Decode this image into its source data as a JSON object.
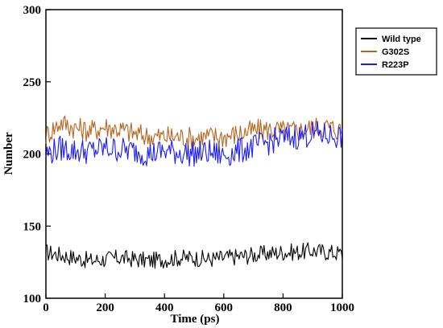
{
  "chart_data": {
    "type": "line",
    "xlabel": "Time (ps)",
    "ylabel": "Number",
    "xlim": [
      0,
      1000
    ],
    "ylim": [
      100,
      300
    ],
    "xticks": [
      "0",
      "200",
      "400",
      "600",
      "800",
      "1000"
    ],
    "yticks": [
      "100",
      "150",
      "200",
      "250",
      "300"
    ],
    "legend_position": "outside-right-top",
    "grid": false,
    "series": [
      {
        "name": "Wild type",
        "color": "#000000",
        "x": [
          0,
          50,
          100,
          150,
          200,
          250,
          300,
          350,
          400,
          450,
          500,
          550,
          600,
          650,
          700,
          750,
          800,
          850,
          900,
          950,
          1000
        ],
        "y": [
          132,
          130,
          128,
          126,
          127,
          128,
          127,
          126,
          127,
          128,
          128,
          127,
          128,
          129,
          130,
          131,
          132,
          132,
          133,
          132,
          131
        ]
      },
      {
        "name": "G302S",
        "color": "#b5651d",
        "x": [
          0,
          50,
          100,
          150,
          200,
          250,
          300,
          350,
          400,
          450,
          500,
          550,
          600,
          650,
          700,
          750,
          800,
          850,
          900,
          950,
          1000
        ],
        "y": [
          213,
          222,
          218,
          216,
          219,
          217,
          214,
          212,
          212,
          212,
          211,
          212,
          212,
          214,
          216,
          217,
          216,
          216,
          218,
          219,
          216
        ]
      },
      {
        "name": "R223P",
        "color": "#1a1aff",
        "x": [
          0,
          50,
          100,
          150,
          200,
          250,
          300,
          350,
          400,
          450,
          500,
          550,
          600,
          650,
          700,
          750,
          800,
          850,
          900,
          950,
          1000
        ],
        "y": [
          200,
          204,
          202,
          202,
          204,
          203,
          202,
          200,
          202,
          201,
          200,
          201,
          199,
          202,
          205,
          208,
          211,
          212,
          214,
          213,
          212
        ]
      }
    ]
  }
}
